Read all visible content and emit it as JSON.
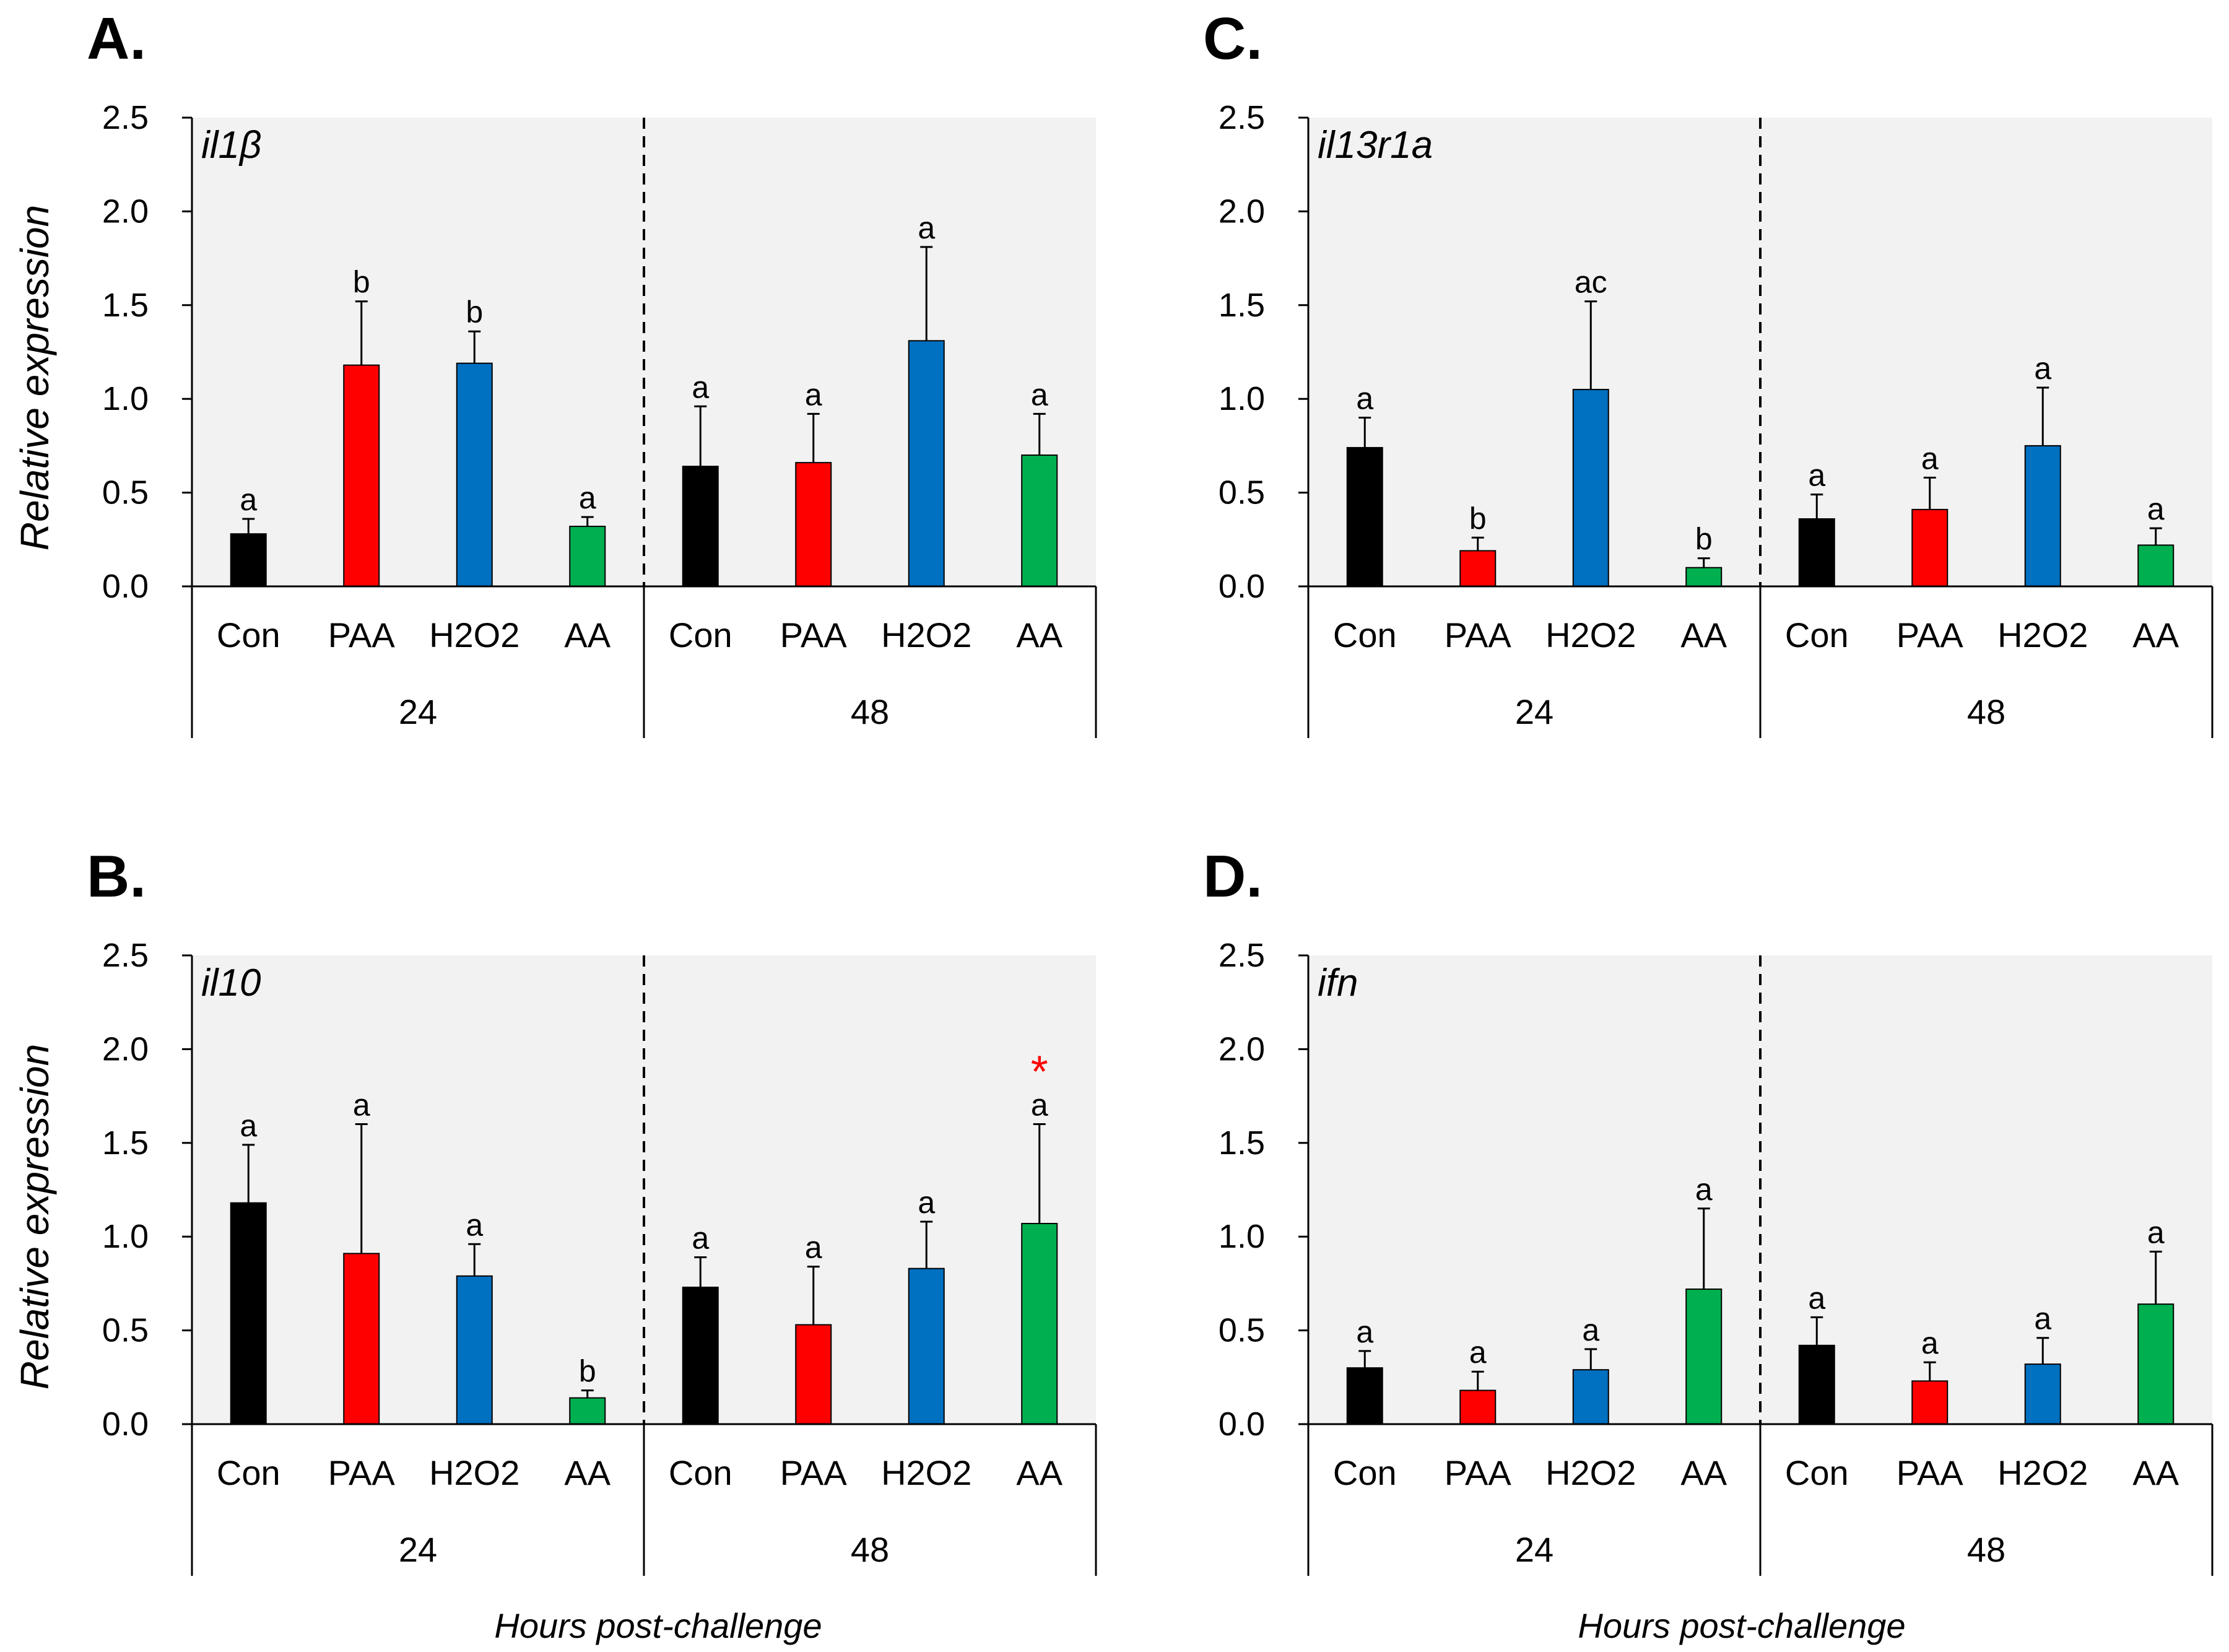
{
  "figure": {
    "x_axis_title": "Hours post-challenge",
    "y_axis_title": "Relative expression",
    "time_groups": [
      "24",
      "48"
    ],
    "treatments": [
      "Con",
      "PAA",
      "H2O2",
      "AA"
    ],
    "treatment_colors": {
      "Con": "#000000",
      "PAA": "#ff0000",
      "H2O2": "#0070c0",
      "AA": "#00b050"
    },
    "plot_background": "#f2f2f2",
    "significance_color": "#ff0000"
  },
  "chart_data": [
    {
      "panel": "A.",
      "gene": "il1β",
      "type": "bar",
      "ylim": [
        0,
        2.5
      ],
      "yticks": [
        "0.0",
        "0.5",
        "1.0",
        "1.5",
        "2.0",
        "2.5"
      ],
      "categories": [
        "Con",
        "PAA",
        "H2O2",
        "AA",
        "Con",
        "PAA",
        "H2O2",
        "AA"
      ],
      "groups": [
        "24",
        "24",
        "24",
        "24",
        "48",
        "48",
        "48",
        "48"
      ],
      "values": [
        0.28,
        1.18,
        1.19,
        0.32,
        0.64,
        0.66,
        1.31,
        0.7
      ],
      "errors": [
        0.08,
        0.34,
        0.17,
        0.05,
        0.32,
        0.26,
        0.5,
        0.22
      ],
      "letters": [
        "a",
        "b",
        "b",
        "a",
        "a",
        "a",
        "a",
        "a"
      ],
      "stars": [
        "",
        "",
        "",
        "",
        "",
        "",
        "",
        ""
      ]
    },
    {
      "panel": "B.",
      "gene": "il10",
      "type": "bar",
      "ylim": [
        0,
        2.5
      ],
      "yticks": [
        "0.0",
        "0.5",
        "1.0",
        "1.5",
        "2.0",
        "2.5"
      ],
      "categories": [
        "Con",
        "PAA",
        "H2O2",
        "AA",
        "Con",
        "PAA",
        "H2O2",
        "AA"
      ],
      "groups": [
        "24",
        "24",
        "24",
        "24",
        "48",
        "48",
        "48",
        "48"
      ],
      "values": [
        1.18,
        0.91,
        0.79,
        0.14,
        0.73,
        0.53,
        0.83,
        1.07
      ],
      "errors": [
        0.31,
        0.69,
        0.17,
        0.04,
        0.16,
        0.31,
        0.25,
        0.53
      ],
      "letters": [
        "a",
        "a",
        "a",
        "b",
        "a",
        "a",
        "a",
        "a"
      ],
      "stars": [
        "",
        "",
        "",
        "",
        "",
        "",
        "",
        "*"
      ]
    },
    {
      "panel": "C.",
      "gene": "il13r1a",
      "type": "bar",
      "ylim": [
        0,
        2.5
      ],
      "yticks": [
        "0.0",
        "0.5",
        "1.0",
        "1.5",
        "2.0",
        "2.5"
      ],
      "categories": [
        "Con",
        "PAA",
        "H2O2",
        "AA",
        "Con",
        "PAA",
        "H2O2",
        "AA"
      ],
      "groups": [
        "24",
        "24",
        "24",
        "24",
        "48",
        "48",
        "48",
        "48"
      ],
      "values": [
        0.74,
        0.19,
        1.05,
        0.1,
        0.36,
        0.41,
        0.75,
        0.22
      ],
      "errors": [
        0.16,
        0.07,
        0.47,
        0.05,
        0.13,
        0.17,
        0.31,
        0.09
      ],
      "letters": [
        "a",
        "b",
        "ac",
        "b",
        "a",
        "a",
        "a",
        "a"
      ],
      "stars": [
        "",
        "",
        "",
        "",
        "",
        "",
        "",
        ""
      ]
    },
    {
      "panel": "D.",
      "gene": "ifn",
      "type": "bar",
      "ylim": [
        0,
        2.5
      ],
      "yticks": [
        "0.0",
        "0.5",
        "1.0",
        "1.5",
        "2.0",
        "2.5"
      ],
      "categories": [
        "Con",
        "PAA",
        "H2O2",
        "AA",
        "Con",
        "PAA",
        "H2O2",
        "AA"
      ],
      "groups": [
        "24",
        "24",
        "24",
        "24",
        "48",
        "48",
        "48",
        "48"
      ],
      "values": [
        0.3,
        0.18,
        0.29,
        0.72,
        0.42,
        0.23,
        0.32,
        0.64
      ],
      "errors": [
        0.09,
        0.1,
        0.11,
        0.43,
        0.15,
        0.1,
        0.14,
        0.28
      ],
      "letters": [
        "a",
        "a",
        "a",
        "a",
        "a",
        "a",
        "a",
        "a"
      ],
      "stars": [
        "",
        "",
        "",
        "",
        "",
        "",
        "",
        ""
      ]
    }
  ]
}
